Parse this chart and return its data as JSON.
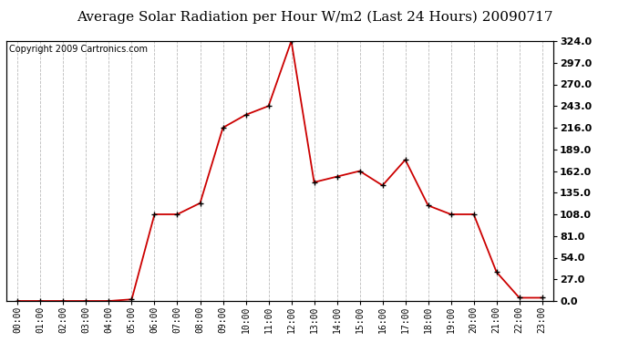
{
  "title": "Average Solar Radiation per Hour W/m2 (Last 24 Hours) 20090717",
  "copyright": "Copyright 2009 Cartronics.com",
  "hours": [
    "00:00",
    "01:00",
    "02:00",
    "03:00",
    "04:00",
    "05:00",
    "06:00",
    "07:00",
    "08:00",
    "09:00",
    "10:00",
    "11:00",
    "12:00",
    "13:00",
    "14:00",
    "15:00",
    "16:00",
    "17:00",
    "18:00",
    "19:00",
    "20:00",
    "21:00",
    "22:00",
    "23:00"
  ],
  "values": [
    0,
    0,
    0,
    0,
    0,
    2,
    108,
    108,
    122,
    216,
    232,
    243,
    324,
    148,
    155,
    162,
    144,
    176,
    119,
    108,
    108,
    36,
    4,
    4
  ],
  "line_color": "#cc0000",
  "marker": "+",
  "marker_size": 5,
  "marker_color": "#000000",
  "bg_color": "#ffffff",
  "plot_bg_color": "#ffffff",
  "grid_color": "#bbbbbb",
  "ylim": [
    0,
    324
  ],
  "yticks": [
    0,
    27,
    54,
    81,
    108,
    135,
    162,
    189,
    216,
    243,
    270,
    297,
    324
  ],
  "title_fontsize": 11,
  "copyright_fontsize": 7,
  "xtick_fontsize": 7,
  "ytick_fontsize": 8
}
